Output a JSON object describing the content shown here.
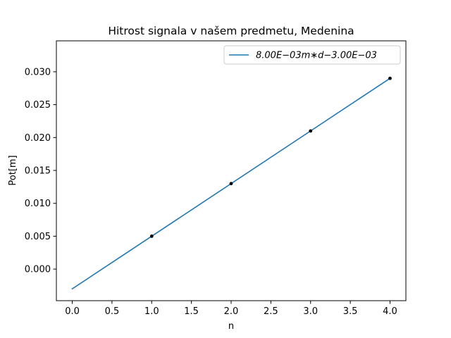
{
  "chart_data": {
    "type": "line",
    "title": "Hitrost signala v našem predmetu, Medenina",
    "xlabel": "n",
    "ylabel": "Pot[m]",
    "xlim": [
      -0.2,
      4.2
    ],
    "ylim": [
      -0.0048,
      0.0347
    ],
    "x_ticks": [
      0.0,
      0.5,
      1.0,
      1.5,
      2.0,
      2.5,
      3.0,
      3.5,
      4.0
    ],
    "x_tick_labels": [
      "0.0",
      "0.5",
      "1.0",
      "1.5",
      "2.0",
      "2.5",
      "3.0",
      "3.5",
      "4.0"
    ],
    "y_ticks": [
      0.0,
      0.005,
      0.01,
      0.015,
      0.02,
      0.025,
      0.03
    ],
    "y_tick_labels": [
      "0.000",
      "0.005",
      "0.010",
      "0.015",
      "0.020",
      "0.025",
      "0.030"
    ],
    "grid": false,
    "legend_position": "top-right",
    "series": [
      {
        "name": "8.00E−03m∗d−3.00E−03",
        "kind": "line",
        "color": "#1f77b4",
        "x": [
          0,
          4
        ],
        "y": [
          -0.003,
          0.029
        ]
      },
      {
        "kind": "scatter",
        "color": "#000000",
        "x": [
          1,
          2,
          3,
          4
        ],
        "y": [
          0.005,
          0.013,
          0.021,
          0.029
        ]
      }
    ]
  }
}
